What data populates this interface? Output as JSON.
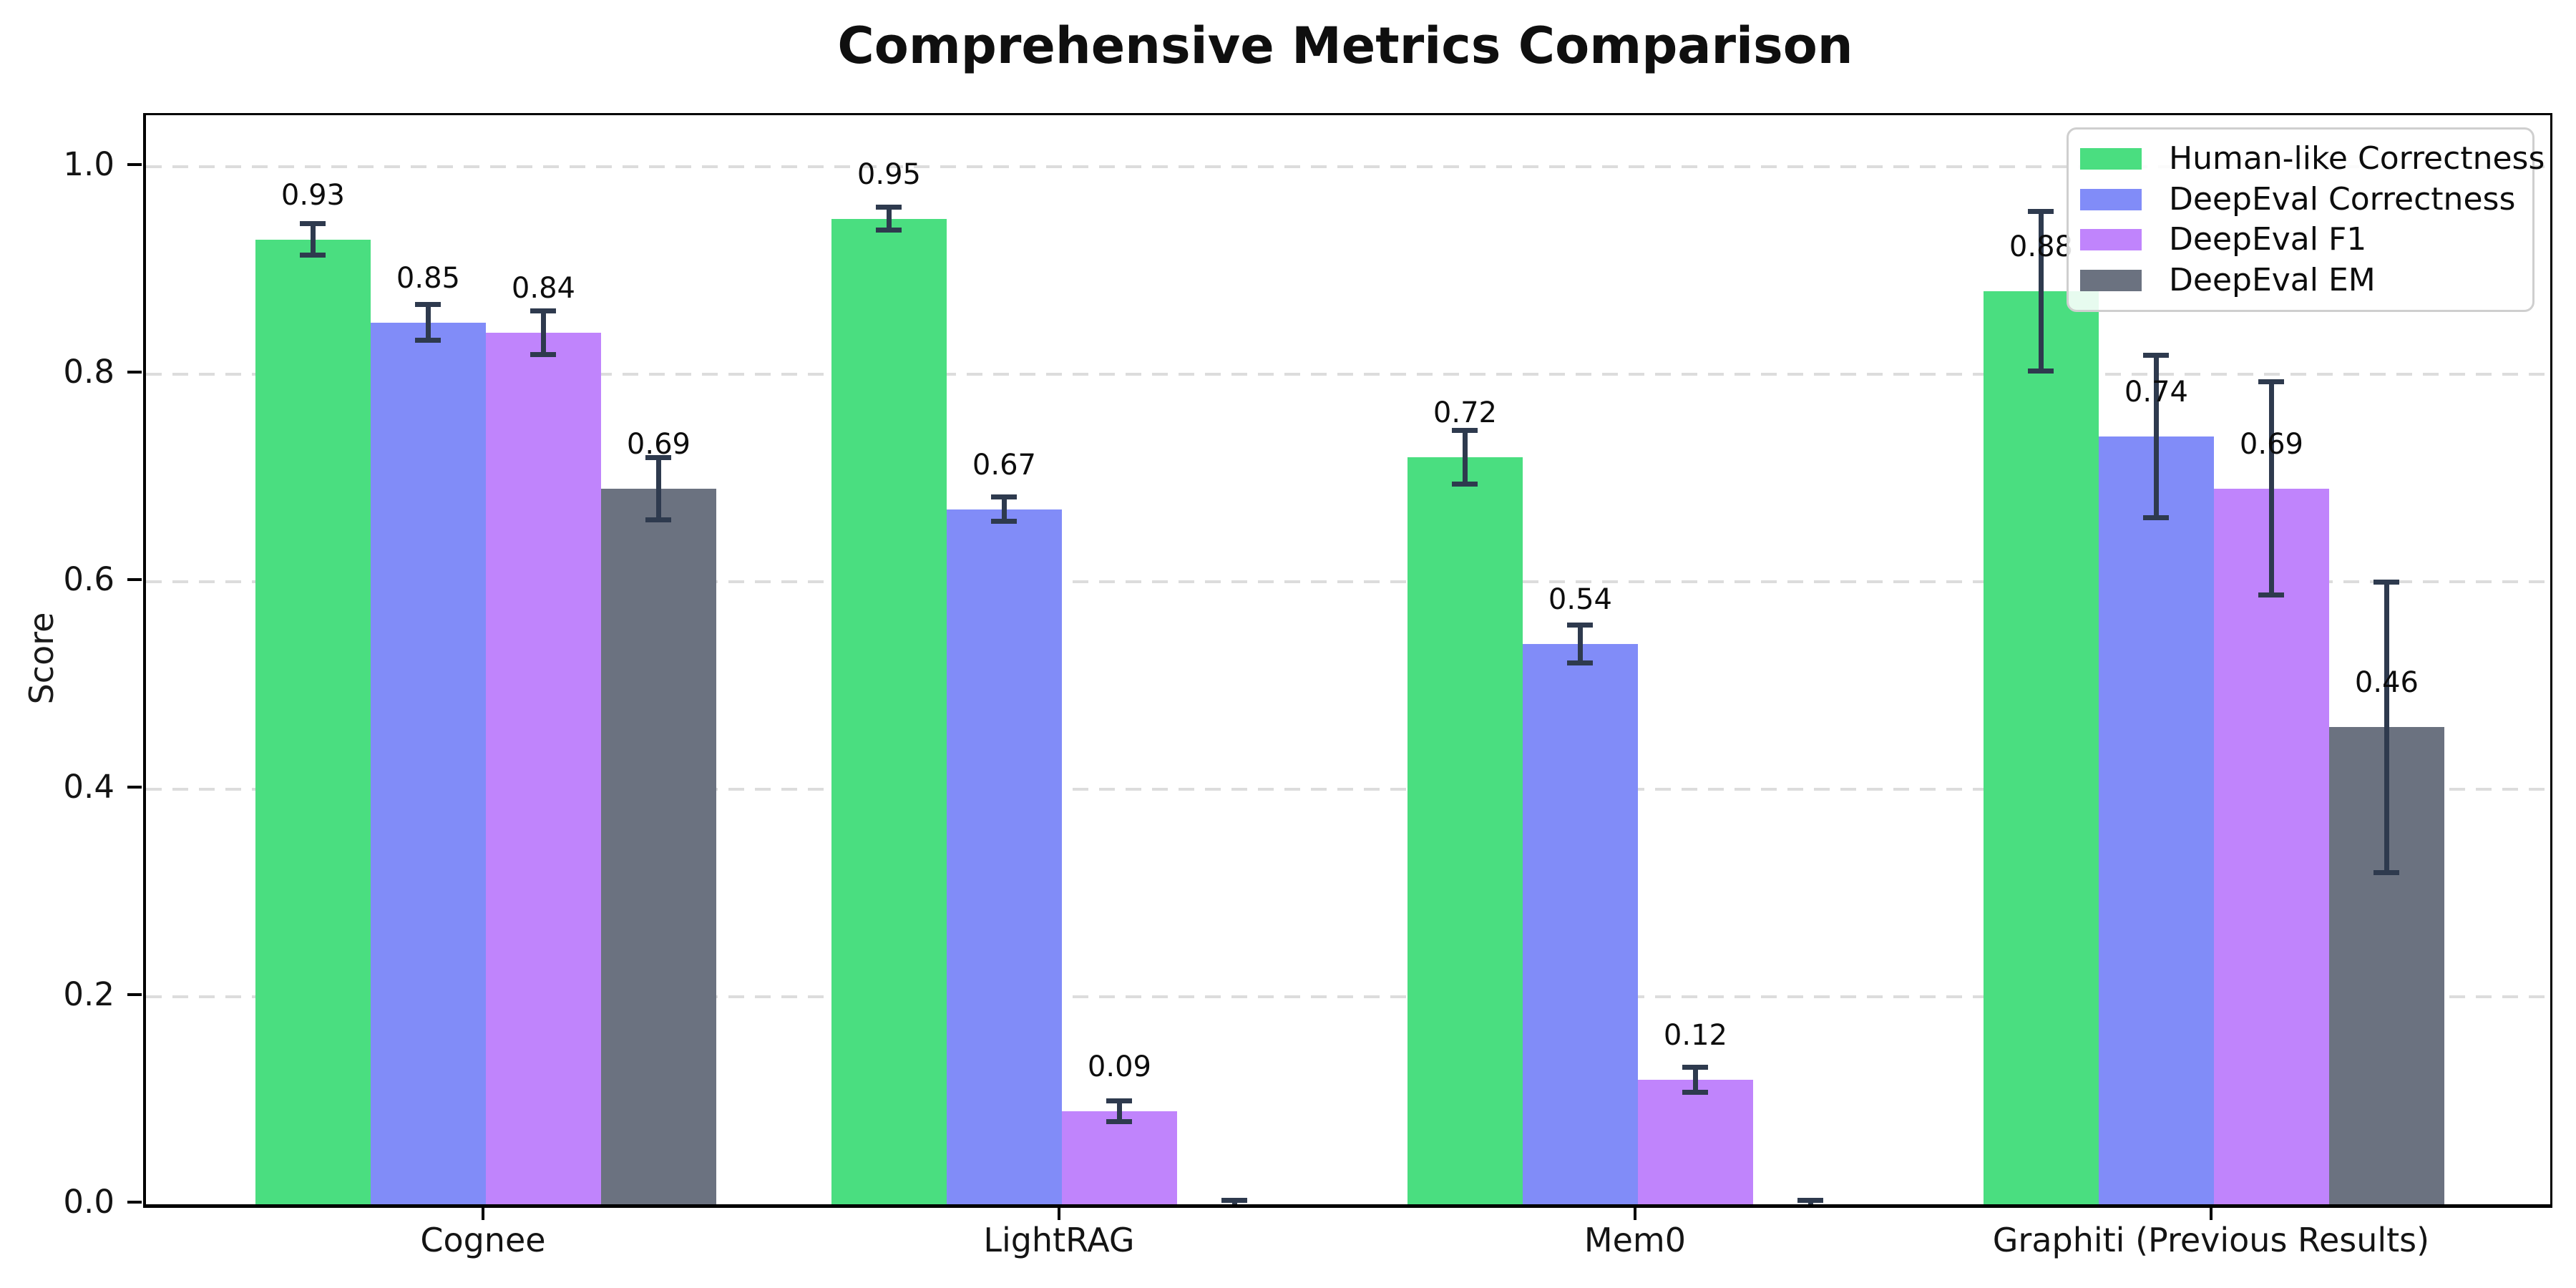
{
  "title": "Comprehensive Metrics Comparison",
  "y_axis_label": "Score",
  "colors": {
    "human_like": "#4ade80",
    "deepeval_correctness": "#818cf8",
    "deepeval_f1": "#c084fc",
    "deepeval_em": "#6b7280",
    "error_bar": "#2e3a4e",
    "gridline": "#dcdcdc",
    "spine": "#000000"
  },
  "legend": {
    "position": "upper right",
    "entries": [
      "Human-like Correctness",
      "DeepEval Correctness",
      "DeepEval F1",
      "DeepEval EM"
    ]
  },
  "chart_data": {
    "type": "bar",
    "title": "Comprehensive Metrics Comparison",
    "xlabel": "",
    "ylabel": "Score",
    "categories": [
      "Cognee",
      "LightRAG",
      "Mem0",
      "Graphiti (Previous Results)"
    ],
    "series": [
      {
        "name": "Human-like Correctness",
        "color": "#4ade80",
        "values": [
          0.93,
          0.95,
          0.72,
          0.88
        ],
        "errors": [
          0.015,
          0.011,
          0.026,
          0.077
        ],
        "labels": [
          "0.93",
          "0.95",
          "0.72",
          "0.88"
        ]
      },
      {
        "name": "DeepEval Correctness",
        "color": "#818cf8",
        "values": [
          0.85,
          0.67,
          0.54,
          0.74
        ],
        "errors": [
          0.017,
          0.012,
          0.018,
          0.078
        ],
        "labels": [
          "0.85",
          "0.67",
          "0.54",
          "0.74"
        ]
      },
      {
        "name": "DeepEval F1",
        "color": "#c084fc",
        "values": [
          0.84,
          0.09,
          0.12,
          0.69
        ],
        "errors": [
          0.021,
          0.01,
          0.012,
          0.103
        ],
        "labels": [
          "0.84",
          "0.09",
          "0.12",
          "0.69"
        ]
      },
      {
        "name": "DeepEval EM",
        "color": "#6b7280",
        "values": [
          0.69,
          0.0,
          0.0,
          0.46
        ],
        "errors": [
          0.03,
          0.004,
          0.004,
          0.14
        ],
        "labels": [
          "0.69",
          "",
          "",
          "0.46"
        ]
      }
    ],
    "yticks": [
      0.0,
      0.2,
      0.4,
      0.6,
      0.8,
      1.0
    ],
    "ytick_labels": [
      "0.0",
      "0.2",
      "0.4",
      "0.6",
      "0.8",
      "1.0"
    ],
    "ylim": [
      0,
      1.05
    ],
    "grid": "horizontal dashed",
    "legend_position": "upper right"
  }
}
